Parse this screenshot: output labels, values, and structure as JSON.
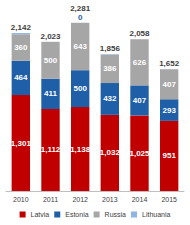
{
  "chart_data": {
    "type": "bar",
    "stacked": true,
    "data_labels": true,
    "tick_labels": "x",
    "grid": false,
    "legend": "bottom",
    "categories": [
      "2010",
      "2011",
      "2012",
      "2013",
      "2014",
      "2015"
    ],
    "ylim": [
      0,
      2400
    ],
    "series": [
      {
        "name": "Latvia",
        "color": "#c00000",
        "values": [
          1301,
          1112,
          1138,
          1032,
          1025,
          951
        ],
        "value_labels": [
          "1,301",
          "1,112",
          "1,138",
          "1,032",
          "1,025",
          "951"
        ]
      },
      {
        "name": "Estonia",
        "color": "#1f5fa8",
        "values": [
          464,
          411,
          500,
          432,
          407,
          293
        ]
      },
      {
        "name": "Russia",
        "color": "#a6a6a6",
        "values": [
          360,
          500,
          643,
          386,
          626,
          407
        ]
      },
      {
        "name": "Lithuania",
        "color": "#8db4e2",
        "values": [
          17,
          0,
          0,
          6,
          0,
          1
        ],
        "value_labels": [
          null,
          null,
          "0",
          null,
          null,
          null
        ]
      }
    ],
    "totals": [
      2142,
      2023,
      2281,
      1856,
      2058,
      1652
    ],
    "total_labels": [
      "2,142",
      "2,023",
      "2,281",
      "1,856",
      "2,058",
      "1,652"
    ]
  }
}
